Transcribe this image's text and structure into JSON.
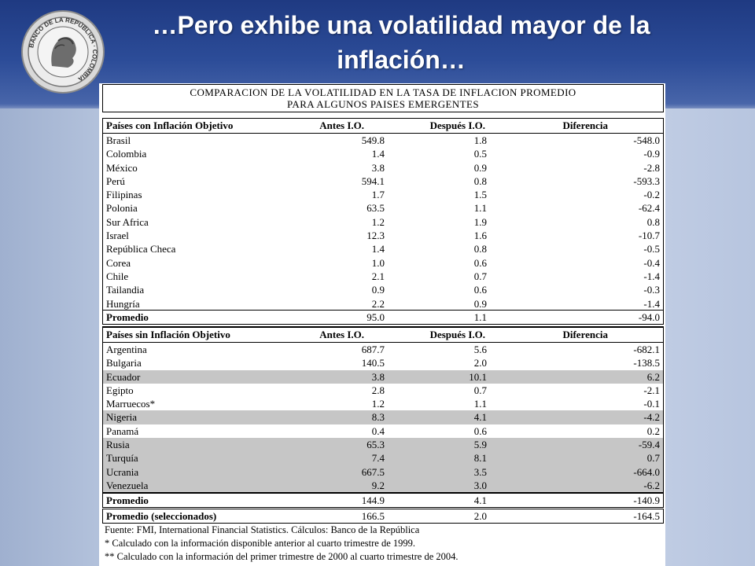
{
  "slide": {
    "title": "…Pero exhibe una volatilidad mayor de la inflación…"
  },
  "logo": {
    "text": "BANCO DE LA REPÚBLICA · COLOMBIA"
  },
  "table": {
    "title_line1": "COMPARACION DE LA VOLATILIDAD EN LA TASA DE INFLACION PROMEDIO",
    "title_line2": "PARA ALGUNOS PAISES EMERGENTES",
    "section1": {
      "headers": [
        "Países con Inflación Objetivo",
        "Antes I.O.",
        "Después I.O.",
        "Diferencia"
      ],
      "rows": [
        {
          "pais": "Brasil",
          "antes": "549.8",
          "despues": "1.8",
          "diferencia": "-548.0"
        },
        {
          "pais": "Colombia",
          "antes": "1.4",
          "despues": "0.5",
          "diferencia": "-0.9"
        },
        {
          "pais": "México",
          "antes": "3.8",
          "despues": "0.9",
          "diferencia": "-2.8"
        },
        {
          "pais": "Perú",
          "antes": "594.1",
          "despues": "0.8",
          "diferencia": "-593.3"
        },
        {
          "pais": "Filipinas",
          "antes": "1.7",
          "despues": "1.5",
          "diferencia": "-0.2"
        },
        {
          "pais": "Polonia",
          "antes": "63.5",
          "despues": "1.1",
          "diferencia": "-62.4"
        },
        {
          "pais": "Sur Africa",
          "antes": "1.2",
          "despues": "1.9",
          "diferencia": "0.8"
        },
        {
          "pais": "Israel",
          "antes": "12.3",
          "despues": "1.6",
          "diferencia": "-10.7"
        },
        {
          "pais": "República Checa",
          "antes": "1.4",
          "despues": "0.8",
          "diferencia": "-0.5"
        },
        {
          "pais": "Corea",
          "antes": "1.0",
          "despues": "0.6",
          "diferencia": "-0.4"
        },
        {
          "pais": "Chile",
          "antes": "2.1",
          "despues": "0.7",
          "diferencia": "-1.4"
        },
        {
          "pais": "Tailandia",
          "antes": "0.9",
          "despues": "0.6",
          "diferencia": "-0.3"
        },
        {
          "pais": "Hungría",
          "antes": "2.2",
          "despues": "0.9",
          "diferencia": "-1.4"
        }
      ],
      "promedio": {
        "label": "Promedio",
        "antes": "95.0",
        "despues": "1.1",
        "diferencia": "-94.0"
      }
    },
    "section2": {
      "headers": [
        "Países sin Inflación Objetivo",
        "Antes I.O.",
        "Después I.O.",
        "Diferencia"
      ],
      "rows": [
        {
          "pais": "Argentina",
          "antes": "687.7",
          "despues": "5.6",
          "diferencia": "-682.1",
          "shaded": false
        },
        {
          "pais": "Bulgaria",
          "antes": "140.5",
          "despues": "2.0",
          "diferencia": "-138.5",
          "shaded": false
        },
        {
          "pais": "Ecuador",
          "antes": "3.8",
          "despues": "10.1",
          "diferencia": "6.2",
          "shaded": true
        },
        {
          "pais": "Egipto",
          "antes": "2.8",
          "despues": "0.7",
          "diferencia": "-2.1",
          "shaded": false
        },
        {
          "pais": "Marruecos*",
          "antes": "1.2",
          "despues": "1.1",
          "diferencia": "-0.1",
          "shaded": false
        },
        {
          "pais": "Nigeria",
          "antes": "8.3",
          "despues": "4.1",
          "diferencia": "-4.2",
          "shaded": true
        },
        {
          "pais": "Panamá",
          "antes": "0.4",
          "despues": "0.6",
          "diferencia": "0.2",
          "shaded": false
        },
        {
          "pais": "Rusia",
          "antes": "65.3",
          "despues": "5.9",
          "diferencia": "-59.4",
          "shaded": true
        },
        {
          "pais": "Turquía",
          "antes": "7.4",
          "despues": "8.1",
          "diferencia": "0.7",
          "shaded": true
        },
        {
          "pais": "Ucrania",
          "antes": "667.5",
          "despues": "3.5",
          "diferencia": "-664.0",
          "shaded": true
        },
        {
          "pais": "Venezuela",
          "antes": "9.2",
          "despues": "3.0",
          "diferencia": "-6.2",
          "shaded": true
        }
      ],
      "promedio": {
        "label": "Promedio",
        "antes": "144.9",
        "despues": "4.1",
        "diferencia": "-140.9"
      },
      "promedio_sel": {
        "label": "Promedio (seleccionados)",
        "antes": "166.5",
        "despues": "2.0",
        "diferencia": "-164.5"
      }
    },
    "footer": {
      "fuente": "Fuente: FMI, International Financial Statistics. Cálculos: Banco de la República",
      "nota1": "* Calculado con la información disponible anterior al cuarto trimestre de 1999.",
      "nota2": "** Calculado con la información del primer trimestre de 2000 al cuarto trimestre de 2004."
    }
  },
  "colors": {
    "header_blue": "#2c4c98",
    "shade_gray": "#c6c6c6"
  }
}
